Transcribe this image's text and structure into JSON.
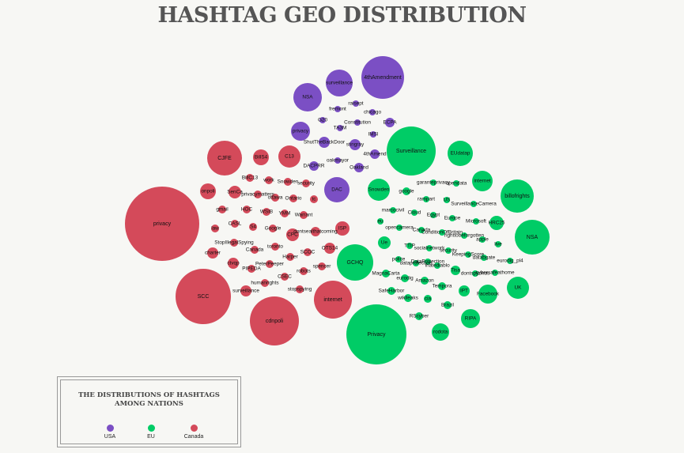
{
  "title": "HASHTAG GEO DISTRIBUTION",
  "legend": {
    "title_line1": "THE DISTRIBUTIONS OF HASHTAGS",
    "title_line2": "AMONG NATIONS",
    "items": [
      {
        "label": "USA",
        "color": "#7b4fc4"
      },
      {
        "label": "EU",
        "color": "#00cc66"
      },
      {
        "label": "Canada",
        "color": "#d44a5a"
      }
    ]
  },
  "chart_data": {
    "type": "bubble",
    "title": "HASHTAG GEO DISTRIBUTION",
    "legend_position": "bottom-left",
    "series": [
      {
        "name": "USA",
        "color": "#7b4fc4",
        "bubbles": [
          {
            "label": "4thAmendment",
            "size": 90
          },
          {
            "label": "surveillance",
            "size": 30
          },
          {
            "label": "NSA",
            "size": 35
          },
          {
            "label": "privacy",
            "size": 20
          },
          {
            "label": "DAC",
            "size": 30
          },
          {
            "label": "ShutTheBackDoor",
            "size": 7
          },
          {
            "label": "stingray",
            "size": 7
          },
          {
            "label": "4thAmend",
            "size": 6
          },
          {
            "label": "Oakland",
            "size": 6
          },
          {
            "label": "ECPA",
            "size": 6
          },
          {
            "label": "DACPRR",
            "size": 6
          },
          {
            "label": "oakmayor",
            "size": 4
          },
          {
            "label": "raisept",
            "size": 4
          },
          {
            "label": "fremont",
            "size": 4
          },
          {
            "label": "chicago",
            "size": 4
          },
          {
            "label": "G20",
            "size": 4
          },
          {
            "label": "Constitution",
            "size": 4
          },
          {
            "label": "TA3M",
            "size": 4
          },
          {
            "label": "IMSI",
            "size": 4
          }
        ]
      },
      {
        "name": "EU",
        "color": "#00cc66",
        "bubbles": [
          {
            "label": "Privacy",
            "size": 170
          },
          {
            "label": "Surveillance",
            "size": 95
          },
          {
            "label": "GCHQ",
            "size": 55
          },
          {
            "label": "NSA",
            "size": 45
          },
          {
            "label": "billofrights",
            "size": 45
          },
          {
            "label": "EUdatap",
            "size": 30
          },
          {
            "label": "UK",
            "size": 25
          },
          {
            "label": "Snowden",
            "size": 25
          },
          {
            "label": "internet",
            "size": 22
          },
          {
            "label": "RIPA",
            "size": 20
          },
          {
            "label": "Facebook",
            "size": 20
          },
          {
            "label": "rodota",
            "size": 17
          },
          {
            "label": "HRC25",
            "size": 11
          },
          {
            "label": "Ue",
            "size": 11
          },
          {
            "label": "IPT",
            "size": 10
          },
          {
            "label": "Tisa",
            "size": 7
          },
          {
            "label": "Brazil",
            "size": 7
          },
          {
            "label": "google",
            "size": 7
          },
          {
            "label": "RScyber",
            "size": 7
          },
          {
            "label": "MagnaCarta",
            "size": 7
          },
          {
            "label": "eurodig",
            "size": 7
          },
          {
            "label": "Amazon",
            "size": 6
          },
          {
            "label": "Tempora",
            "size": 6
          },
          {
            "label": "SafeHarbor",
            "size": 6
          },
          {
            "label": "wikileaks",
            "size": 6
          },
          {
            "label": "cia",
            "size": 5
          },
          {
            "label": "garanteprivacy",
            "size": 5
          },
          {
            "label": "opendata",
            "size": 5
          },
          {
            "label": "rampart",
            "size": 5
          },
          {
            "label": "US",
            "size": 5
          },
          {
            "label": "SurveillanceCamera",
            "size": 5
          },
          {
            "label": "marcocivil",
            "size": 5
          },
          {
            "label": "Cloud",
            "size": 5
          },
          {
            "label": "Egypt",
            "size": 5
          },
          {
            "label": "Europe",
            "size": 5
          },
          {
            "label": "Microsoft",
            "size": 5
          },
          {
            "label": "eu",
            "size": 5
          },
          {
            "label": "opencamera",
            "size": 5
          },
          {
            "label": "Canada",
            "size": 5
          },
          {
            "label": "ConditionOfBritain",
            "size": 5
          },
          {
            "label": "righttobeforgotten",
            "size": 5
          },
          {
            "label": "apple",
            "size": 5
          },
          {
            "label": "live",
            "size": 5
          },
          {
            "label": "TTIP",
            "size": 5
          },
          {
            "label": "socialnetwork",
            "size": 5
          },
          {
            "label": "security",
            "size": 5
          },
          {
            "label": "KeepingScore",
            "size": 5
          },
          {
            "label": "dataprotection",
            "size": 5
          },
          {
            "label": "databgate",
            "size": 5
          },
          {
            "label": "eurodig_pl4",
            "size": 5
          },
          {
            "label": "police",
            "size": 5
          },
          {
            "label": "DataProtection",
            "size": 5
          },
          {
            "label": "Ihatediablo",
            "size": 5
          },
          {
            "label": "dontspyonus",
            "size": 5
          },
          {
            "label": "cybersafeathome",
            "size": 5
          }
        ]
      },
      {
        "name": "Canada",
        "color": "#d44a5a",
        "bubbles": [
          {
            "label": "privacy",
            "size": 220
          },
          {
            "label": "SCC",
            "size": 75
          },
          {
            "label": "cdnpoli",
            "size": 60
          },
          {
            "label": "internet",
            "size": 35
          },
          {
            "label": "CJFE",
            "size": 28
          },
          {
            "label": "C13",
            "size": 17
          },
          {
            "label": "BillS4",
            "size": 11
          },
          {
            "label": "onpoli",
            "size": 10
          },
          {
            "label": "ISP",
            "size": 8
          },
          {
            "label": "SenCa",
            "size": 8
          },
          {
            "label": "CPC",
            "size": 7
          },
          {
            "label": "OTS14",
            "size": 7
          },
          {
            "label": "charter",
            "size": 7
          },
          {
            "label": "ctvqp",
            "size": 7
          },
          {
            "label": "surveillance",
            "size": 7
          },
          {
            "label": "dontsealthatcoming",
            "size": 6
          },
          {
            "label": "BillC13",
            "size": 5
          },
          {
            "label": "work",
            "size": 5
          },
          {
            "label": "Snowden",
            "size": 5
          },
          {
            "label": "security",
            "size": 5
          },
          {
            "label": "privacymatters",
            "size": 5
          },
          {
            "label": "ottawa",
            "size": 5
          },
          {
            "label": "Ontario",
            "size": 5
          },
          {
            "label": "tc",
            "size": 5
          },
          {
            "label": "gmail",
            "size": 5
          },
          {
            "label": "HOC",
            "size": 5
          },
          {
            "label": "WSIB",
            "size": 5
          },
          {
            "label": "YMM",
            "size": 5
          },
          {
            "label": "Warrant",
            "size": 5
          },
          {
            "label": "CASL",
            "size": 5
          },
          {
            "label": "S4",
            "size": 5
          },
          {
            "label": "Google",
            "size": 5
          },
          {
            "label": "law",
            "size": 5
          },
          {
            "label": "StopIllegalSpying",
            "size": 5
          },
          {
            "label": "Canada",
            "size": 5
          },
          {
            "label": "toronto",
            "size": 5
          },
          {
            "label": "SCOC",
            "size": 5
          },
          {
            "label": "Harper",
            "size": 5
          },
          {
            "label": "PIPEDA",
            "size": 5
          },
          {
            "label": "PeterPeeper",
            "size": 5
          },
          {
            "label": "spencer",
            "size": 5
          },
          {
            "label": "CSEC",
            "size": 5
          },
          {
            "label": "robots",
            "size": 5
          },
          {
            "label": "humanrights",
            "size": 5
          },
          {
            "label": "stopspying",
            "size": 5
          }
        ]
      }
    ]
  }
}
